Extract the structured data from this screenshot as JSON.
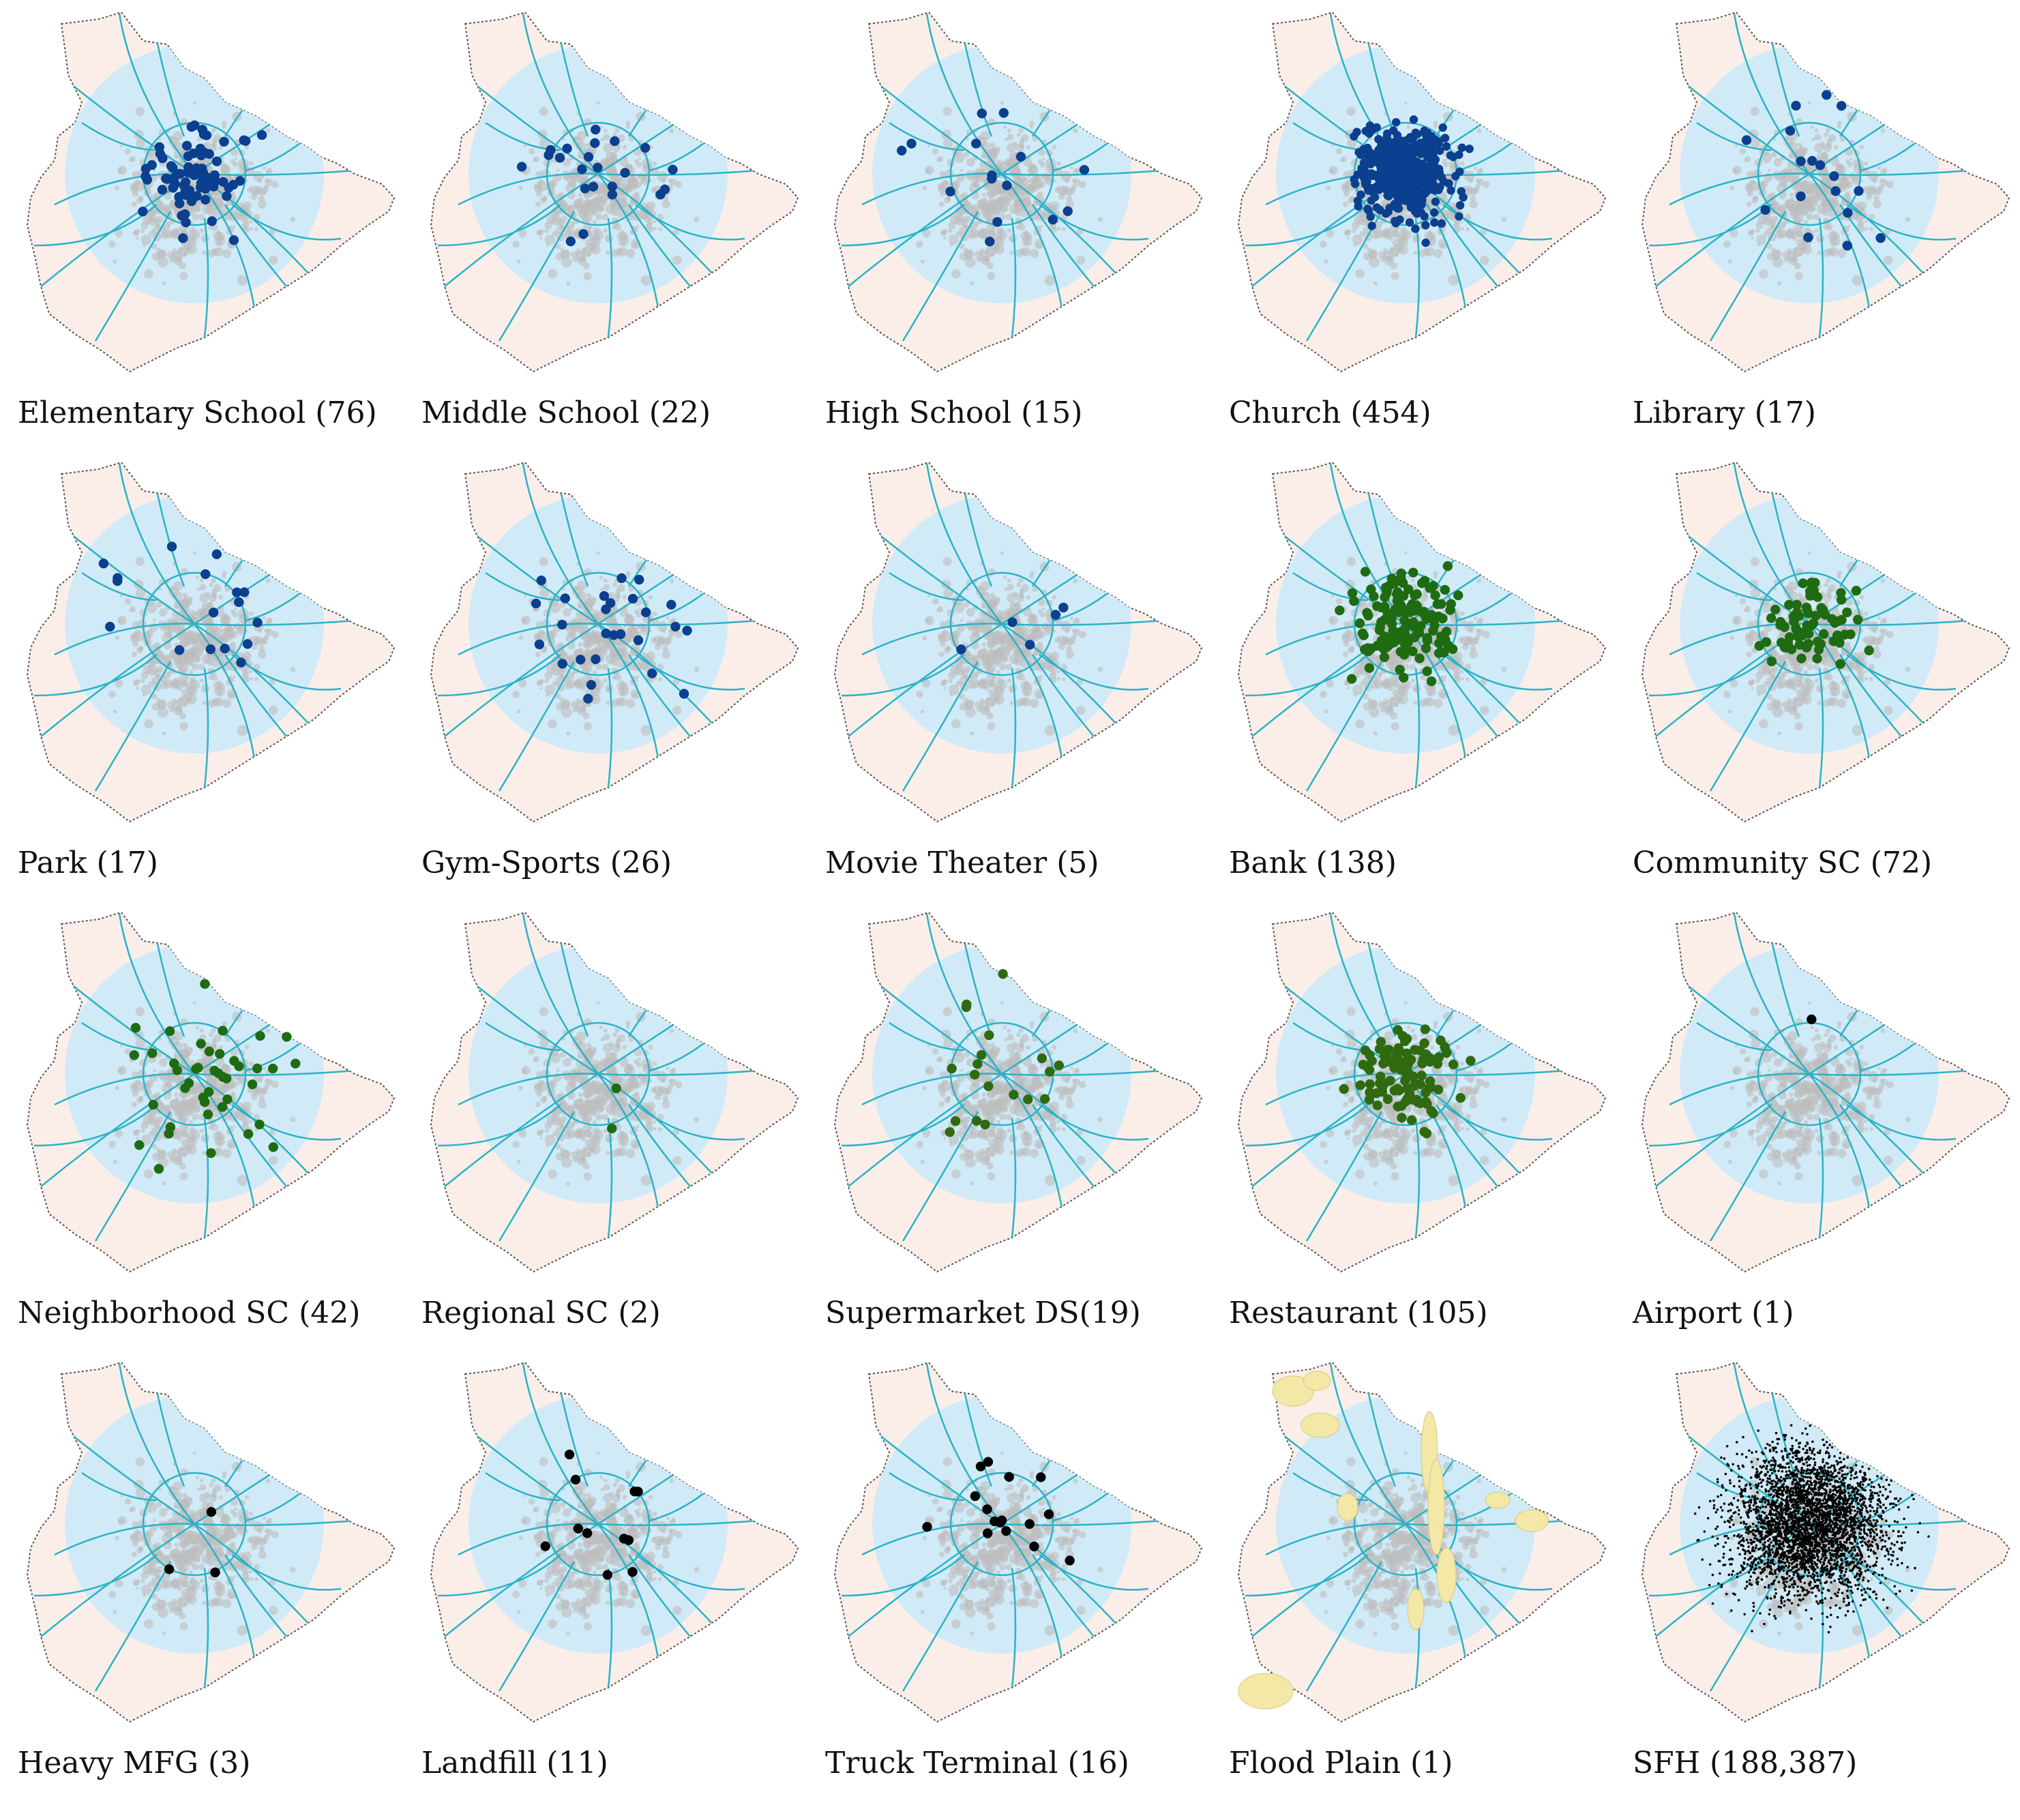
{
  "figure": {
    "colors": {
      "county_fill": "#fbeee9",
      "buffer_fill": "#cfe9f8",
      "urban_fill": "#bdbdbd",
      "road": "#2ab3c6",
      "boundary": "#555555",
      "flood_fill": "#f3e8a6"
    },
    "panels": [
      {
        "label": "Elementary School (76)",
        "dot_color": "#0b3f8f",
        "count": 76
      },
      {
        "label": "Middle School (22)",
        "dot_color": "#0b3f8f",
        "count": 22
      },
      {
        "label": "High School (15)",
        "dot_color": "#0b3f8f",
        "count": 15
      },
      {
        "label": "Church (454)",
        "dot_color": "#0b3f8f",
        "count": 454
      },
      {
        "label": "Library (17)",
        "dot_color": "#0b3f8f",
        "count": 17
      },
      {
        "label": "Park (17)",
        "dot_color": "#0b3f8f",
        "count": 17
      },
      {
        "label": "Gym-Sports (26)",
        "dot_color": "#0b3f8f",
        "count": 26
      },
      {
        "label": "Movie Theater (5)",
        "dot_color": "#0b3f8f",
        "count": 5
      },
      {
        "label": "Bank (138)",
        "dot_color": "#1f6b12",
        "count": 138
      },
      {
        "label": "Community SC (72)",
        "dot_color": "#1f6b12",
        "count": 72
      },
      {
        "label": "Neighborhood SC (42)",
        "dot_color": "#1f6b12",
        "count": 42
      },
      {
        "label": "Regional SC (2)",
        "dot_color": "#1f6b12",
        "count": 2
      },
      {
        "label": "Supermarket DS(19)",
        "dot_color": "#2f6a10",
        "count": 19
      },
      {
        "label": "Restaurant (105)",
        "dot_color": "#2f6a10",
        "count": 105
      },
      {
        "label": "Airport (1)",
        "dot_color": "#000000",
        "count": 1
      },
      {
        "label": "Heavy MFG (3)",
        "dot_color": "#000000",
        "count": 3
      },
      {
        "label": "Landfill (11)",
        "dot_color": "#000000",
        "count": 11
      },
      {
        "label": "Truck Terminal (16)",
        "dot_color": "#000000",
        "count": 16
      },
      {
        "label": "Flood Plain (1)",
        "dot_color": "#f3e8a6",
        "count": 1
      },
      {
        "label": "SFH (188,387)",
        "dot_color": "#000000",
        "count": 188387
      }
    ]
  }
}
